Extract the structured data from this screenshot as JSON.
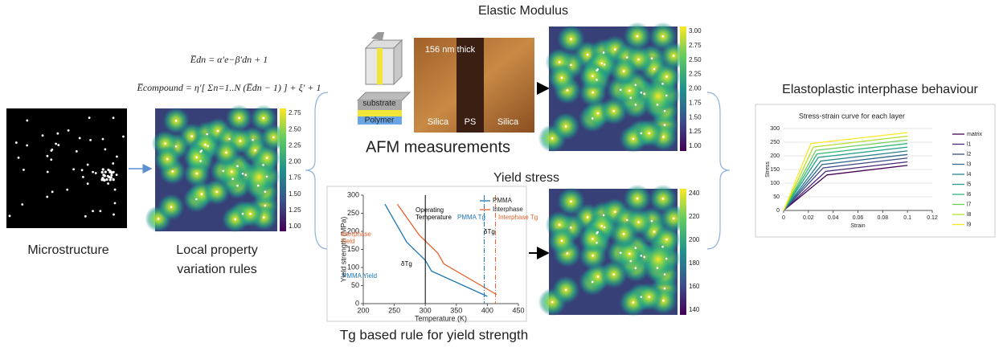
{
  "microstructure": {
    "label": "Microstructure"
  },
  "local_rules": {
    "equations": [
      "E̅dn = α′e−β′dn + 1",
      "E̅compound = η′[ Σn=1..N (E̅dn − 1) ] + ξ′ + 1"
    ],
    "label_lines": [
      "Local property",
      "variation rules"
    ],
    "colorbar_ticks": [
      "2.75",
      "2.50",
      "2.25",
      "2.00",
      "1.75",
      "1.50",
      "1.25",
      "1.00"
    ]
  },
  "elastic": {
    "title": "Elastic Modulus",
    "afm_label": "AFM measurements",
    "afm_image_texts": [
      "156 nm thick",
      "Silica",
      "PS",
      "Silica"
    ],
    "sample_texts": [
      "substrate",
      "Polymer"
    ],
    "colorbar_ticks": [
      "3.00",
      "2.75",
      "2.50",
      "2.25",
      "2.00",
      "1.75",
      "1.50",
      "1.25",
      "1.00"
    ]
  },
  "yield": {
    "title": "Yield stress",
    "caption": "Tg based rule for yield strength",
    "colorbar_ticks": [
      "240",
      "220",
      "200",
      "180",
      "160",
      "140"
    ],
    "chart": {
      "ylabel": "Yield strength (MPa)",
      "xlabel": "Temperature (K)",
      "xlim": [
        200,
        450
      ],
      "ylim": [
        0,
        300
      ],
      "xticks": [
        200,
        250,
        300,
        350,
        400,
        450
      ],
      "yticks": [
        0,
        50,
        100,
        150,
        200,
        250,
        300
      ],
      "series": [
        {
          "name": "PMMA",
          "color": "#1f77b4",
          "x": [
            235,
            270,
            300,
            310,
            400
          ],
          "values": [
            275,
            170,
            120,
            90,
            20
          ]
        },
        {
          "name": "Interphase",
          "color": "#e8612c",
          "x": [
            255,
            290,
            320,
            330,
            415
          ],
          "values": [
            275,
            190,
            140,
            110,
            25
          ]
        }
      ],
      "operating_temperature": 300,
      "pmma_tg": 395,
      "interphase_tg": 413,
      "annotations": [
        "Operating",
        "Temperature",
        "Interphase",
        "Yield",
        "PMMA Yield",
        "δTg",
        "PMMA Tg",
        "δTg",
        "Interphase Tg"
      ]
    }
  },
  "elastoplastic": {
    "title": "Elastoplastic interphase behaviour",
    "chart": {
      "title": "Stress-strain curve for each layer",
      "ylabel": "Stress",
      "xlabel": "Strain",
      "xlim": [
        0,
        0.12
      ],
      "ylim": [
        0,
        300
      ],
      "xticks": [
        0,
        0.02,
        0.04,
        0.06,
        0.08,
        0.1,
        0.12
      ],
      "yticks": [
        0,
        50,
        100,
        150,
        200,
        250,
        300
      ],
      "series": [
        {
          "name": "matrix",
          "color": "#440154",
          "x": [
            0,
            0.035,
            0.1
          ],
          "values": [
            0,
            130,
            165
          ]
        },
        {
          "name": "l1",
          "color": "#482878",
          "x": [
            0,
            0.034,
            0.1
          ],
          "values": [
            0,
            143,
            178
          ]
        },
        {
          "name": "l2",
          "color": "#3e4989",
          "x": [
            0,
            0.032,
            0.1
          ],
          "values": [
            0,
            156,
            192
          ]
        },
        {
          "name": "l3",
          "color": "#31688e",
          "x": [
            0,
            0.031,
            0.1
          ],
          "values": [
            0,
            168,
            205
          ]
        },
        {
          "name": "l4",
          "color": "#26828e",
          "x": [
            0,
            0.03,
            0.1
          ],
          "values": [
            0,
            181,
            218
          ]
        },
        {
          "name": "l5",
          "color": "#1f9e89",
          "x": [
            0,
            0.028,
            0.1
          ],
          "values": [
            0,
            194,
            232
          ]
        },
        {
          "name": "l6",
          "color": "#35b779",
          "x": [
            0,
            0.027,
            0.1
          ],
          "values": [
            0,
            207,
            245
          ]
        },
        {
          "name": "l7",
          "color": "#6ece58",
          "x": [
            0,
            0.026,
            0.1
          ],
          "values": [
            0,
            220,
            258
          ]
        },
        {
          "name": "l8",
          "color": "#b5de2b",
          "x": [
            0,
            0.024,
            0.1
          ],
          "values": [
            0,
            232,
            272
          ]
        },
        {
          "name": "l9",
          "color": "#fde725",
          "x": [
            0,
            0.022,
            0.1
          ],
          "values": [
            0,
            245,
            285
          ]
        }
      ]
    }
  }
}
